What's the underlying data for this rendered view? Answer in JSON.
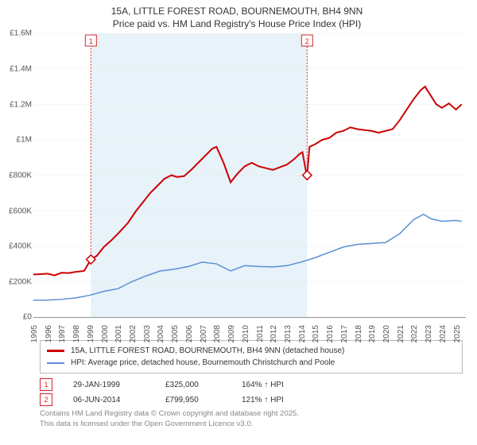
{
  "title_line1": "15A, LITTLE FOREST ROAD, BOURNEMOUTH, BH4 9NN",
  "title_line2": "Price paid vs. HM Land Registry's House Price Index (HPI)",
  "colors": {
    "property": "#cc0000",
    "hpi": "#5b8fd6",
    "band": "#e8f2f9",
    "grid": "#e0e0e0",
    "flag": "#d02828",
    "text": "#333333",
    "muted": "#888888"
  },
  "chart": {
    "type": "line",
    "x_start_year": 1995,
    "x_end_year": 2025.7,
    "x_ticks": [
      1995,
      1996,
      1997,
      1998,
      1999,
      2000,
      2001,
      2002,
      2003,
      2004,
      2005,
      2006,
      2007,
      2008,
      2009,
      2010,
      2011,
      2012,
      2013,
      2014,
      2015,
      2016,
      2017,
      2018,
      2019,
      2020,
      2021,
      2022,
      2023,
      2024,
      2025
    ],
    "y_min": 0,
    "y_max": 1600000,
    "y_ticks": [
      {
        "v": 0,
        "label": "£0"
      },
      {
        "v": 200000,
        "label": "£200K"
      },
      {
        "v": 400000,
        "label": "£400K"
      },
      {
        "v": 600000,
        "label": "£600K"
      },
      {
        "v": 800000,
        "label": "£800K"
      },
      {
        "v": 1000000,
        "label": "£1M"
      },
      {
        "v": 1200000,
        "label": "£1.2M"
      },
      {
        "v": 1400000,
        "label": "£1.4M"
      },
      {
        "v": 1600000,
        "label": "£1.6M"
      }
    ],
    "band_start": 1999.08,
    "band_end": 2014.43,
    "series_property": [
      [
        1995,
        240000
      ],
      [
        1996,
        245000
      ],
      [
        1996.5,
        235000
      ],
      [
        1997,
        250000
      ],
      [
        1997.5,
        248000
      ],
      [
        1998,
        255000
      ],
      [
        1998.6,
        260000
      ],
      [
        1999.08,
        325000
      ],
      [
        1999.5,
        345000
      ],
      [
        2000,
        395000
      ],
      [
        2000.5,
        430000
      ],
      [
        2001,
        470000
      ],
      [
        2001.7,
        530000
      ],
      [
        2002.3,
        600000
      ],
      [
        2002.8,
        650000
      ],
      [
        2003.3,
        700000
      ],
      [
        2003.8,
        740000
      ],
      [
        2004.3,
        780000
      ],
      [
        2004.8,
        800000
      ],
      [
        2005.2,
        790000
      ],
      [
        2005.7,
        795000
      ],
      [
        2006.2,
        830000
      ],
      [
        2006.7,
        870000
      ],
      [
        2007.2,
        910000
      ],
      [
        2007.7,
        950000
      ],
      [
        2008,
        960000
      ],
      [
        2008.5,
        870000
      ],
      [
        2009,
        760000
      ],
      [
        2009.5,
        810000
      ],
      [
        2010,
        850000
      ],
      [
        2010.5,
        870000
      ],
      [
        2011,
        850000
      ],
      [
        2011.5,
        840000
      ],
      [
        2012,
        830000
      ],
      [
        2012.5,
        845000
      ],
      [
        2013,
        860000
      ],
      [
        2013.5,
        890000
      ],
      [
        2013.9,
        920000
      ],
      [
        2014.1,
        930000
      ],
      [
        2014.4,
        800000
      ],
      [
        2014.43,
        799950
      ],
      [
        2014.6,
        960000
      ],
      [
        2015,
        975000
      ],
      [
        2015.5,
        1000000
      ],
      [
        2016,
        1010000
      ],
      [
        2016.5,
        1040000
      ],
      [
        2017,
        1050000
      ],
      [
        2017.5,
        1070000
      ],
      [
        2018,
        1060000
      ],
      [
        2018.5,
        1055000
      ],
      [
        2019,
        1050000
      ],
      [
        2019.5,
        1040000
      ],
      [
        2020,
        1050000
      ],
      [
        2020.5,
        1060000
      ],
      [
        2021,
        1110000
      ],
      [
        2021.5,
        1170000
      ],
      [
        2022,
        1230000
      ],
      [
        2022.5,
        1280000
      ],
      [
        2022.8,
        1300000
      ],
      [
        2023.2,
        1250000
      ],
      [
        2023.6,
        1200000
      ],
      [
        2024,
        1180000
      ],
      [
        2024.5,
        1205000
      ],
      [
        2025,
        1170000
      ],
      [
        2025.4,
        1200000
      ]
    ],
    "series_hpi": [
      [
        1995,
        95000
      ],
      [
        1996,
        96000
      ],
      [
        1997,
        100000
      ],
      [
        1998,
        108000
      ],
      [
        1999,
        123000
      ],
      [
        2000,
        145000
      ],
      [
        2001,
        160000
      ],
      [
        2002,
        200000
      ],
      [
        2003,
        232000
      ],
      [
        2004,
        260000
      ],
      [
        2005,
        270000
      ],
      [
        2006,
        285000
      ],
      [
        2007,
        310000
      ],
      [
        2008,
        300000
      ],
      [
        2009,
        260000
      ],
      [
        2010,
        290000
      ],
      [
        2011,
        285000
      ],
      [
        2012,
        283000
      ],
      [
        2013,
        290000
      ],
      [
        2014,
        310000
      ],
      [
        2015,
        335000
      ],
      [
        2016,
        365000
      ],
      [
        2017,
        395000
      ],
      [
        2018,
        410000
      ],
      [
        2019,
        415000
      ],
      [
        2020,
        420000
      ],
      [
        2021,
        470000
      ],
      [
        2022,
        550000
      ],
      [
        2022.7,
        580000
      ],
      [
        2023.2,
        555000
      ],
      [
        2024,
        540000
      ],
      [
        2025,
        545000
      ],
      [
        2025.4,
        540000
      ]
    ],
    "markers": [
      {
        "n": "1",
        "x": 1999.08,
        "y": 325000
      },
      {
        "n": "2",
        "x": 2014.43,
        "y": 799950
      }
    ]
  },
  "legend": {
    "r1_label": "15A, LITTLE FOREST ROAD, BOURNEMOUTH, BH4 9NN (detached house)",
    "r2_label": "HPI: Average price, detached house, Bournemouth Christchurch and Poole"
  },
  "sales": [
    {
      "n": "1",
      "date": "29-JAN-1999",
      "price": "£325,000",
      "pct": "164% ↑ HPI"
    },
    {
      "n": "2",
      "date": "06-JUN-2014",
      "price": "£799,950",
      "pct": "121% ↑ HPI"
    }
  ],
  "footer": {
    "l1": "Contains HM Land Registry data © Crown copyright and database right 2025.",
    "l2": "This data is licensed under the Open Government Licence v3.0."
  }
}
